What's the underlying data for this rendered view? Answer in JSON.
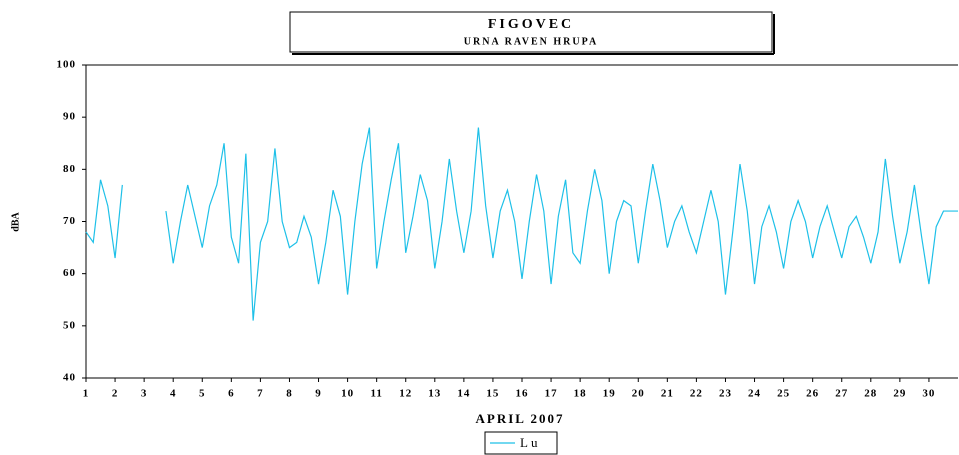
{
  "chart_data": {
    "type": "line",
    "title": "FIGOVEC",
    "subtitle": "URNA RAVEN HRUPA",
    "xlabel": "APRIL 2007",
    "ylabel": "dBA",
    "xlim": [
      1,
      31
    ],
    "ylim": [
      40,
      100
    ],
    "xticks": [
      1,
      2,
      3,
      4,
      5,
      6,
      7,
      8,
      9,
      10,
      11,
      12,
      13,
      14,
      15,
      16,
      17,
      18,
      19,
      20,
      21,
      22,
      23,
      24,
      25,
      26,
      27,
      28,
      29,
      30
    ],
    "yticks": [
      40,
      50,
      60,
      70,
      80,
      90,
      100
    ],
    "x": [
      1,
      1.25,
      1.5,
      1.75,
      2,
      2.25,
      2.5,
      2.75,
      3,
      3.25,
      3.5,
      3.75,
      4,
      4.25,
      4.5,
      4.75,
      5,
      5.25,
      5.5,
      5.75,
      6,
      6.25,
      6.5,
      6.75,
      7,
      7.25,
      7.5,
      7.75,
      8,
      8.25,
      8.5,
      8.75,
      9,
      9.25,
      9.5,
      9.75,
      10,
      10.25,
      10.5,
      10.75,
      11,
      11.25,
      11.5,
      11.75,
      12,
      12.25,
      12.5,
      12.75,
      13,
      13.25,
      13.5,
      13.75,
      14,
      14.25,
      14.5,
      14.75,
      15,
      15.25,
      15.5,
      15.75,
      16,
      16.25,
      16.5,
      16.75,
      17,
      17.25,
      17.5,
      17.75,
      18,
      18.25,
      18.5,
      18.75,
      19,
      19.25,
      19.5,
      19.75,
      20,
      20.25,
      20.5,
      20.75,
      21,
      21.25,
      21.5,
      21.75,
      22,
      22.25,
      22.5,
      22.75,
      23,
      23.25,
      23.5,
      23.75,
      24,
      24.25,
      24.5,
      24.75,
      25,
      25.25,
      25.5,
      25.75,
      26,
      26.25,
      26.5,
      26.75,
      27,
      27.25,
      27.5,
      27.75,
      28,
      28.25,
      28.5,
      28.75,
      29,
      29.25,
      29.5,
      29.75,
      30,
      30.25,
      30.5,
      30.75,
      31
    ],
    "series": [
      {
        "name": "Lu",
        "color": "#1ec0e8",
        "values": [
          68,
          66,
          78,
          73,
          63,
          77,
          null,
          null,
          null,
          null,
          null,
          72,
          62,
          70,
          77,
          71,
          65,
          73,
          77,
          85,
          67,
          62,
          83,
          51,
          66,
          70,
          84,
          70,
          65,
          66,
          71,
          67,
          58,
          66,
          76,
          71,
          56,
          70,
          81,
          88,
          61,
          70,
          78,
          85,
          64,
          71,
          79,
          74,
          61,
          70,
          82,
          72,
          64,
          72,
          88,
          73,
          63,
          72,
          76,
          70,
          59,
          70,
          79,
          72,
          58,
          71,
          78,
          64,
          62,
          72,
          80,
          74,
          60,
          70,
          74,
          73,
          62,
          72,
          81,
          74,
          65,
          70,
          73,
          68,
          64,
          70,
          76,
          70,
          56,
          68,
          81,
          72,
          58,
          69,
          73,
          68,
          61,
          70,
          74,
          70,
          63,
          69,
          73,
          68,
          63,
          69,
          71,
          67,
          62,
          68,
          82,
          71,
          62,
          68,
          77,
          67,
          58,
          69,
          72,
          72,
          72
        ]
      }
    ]
  }
}
